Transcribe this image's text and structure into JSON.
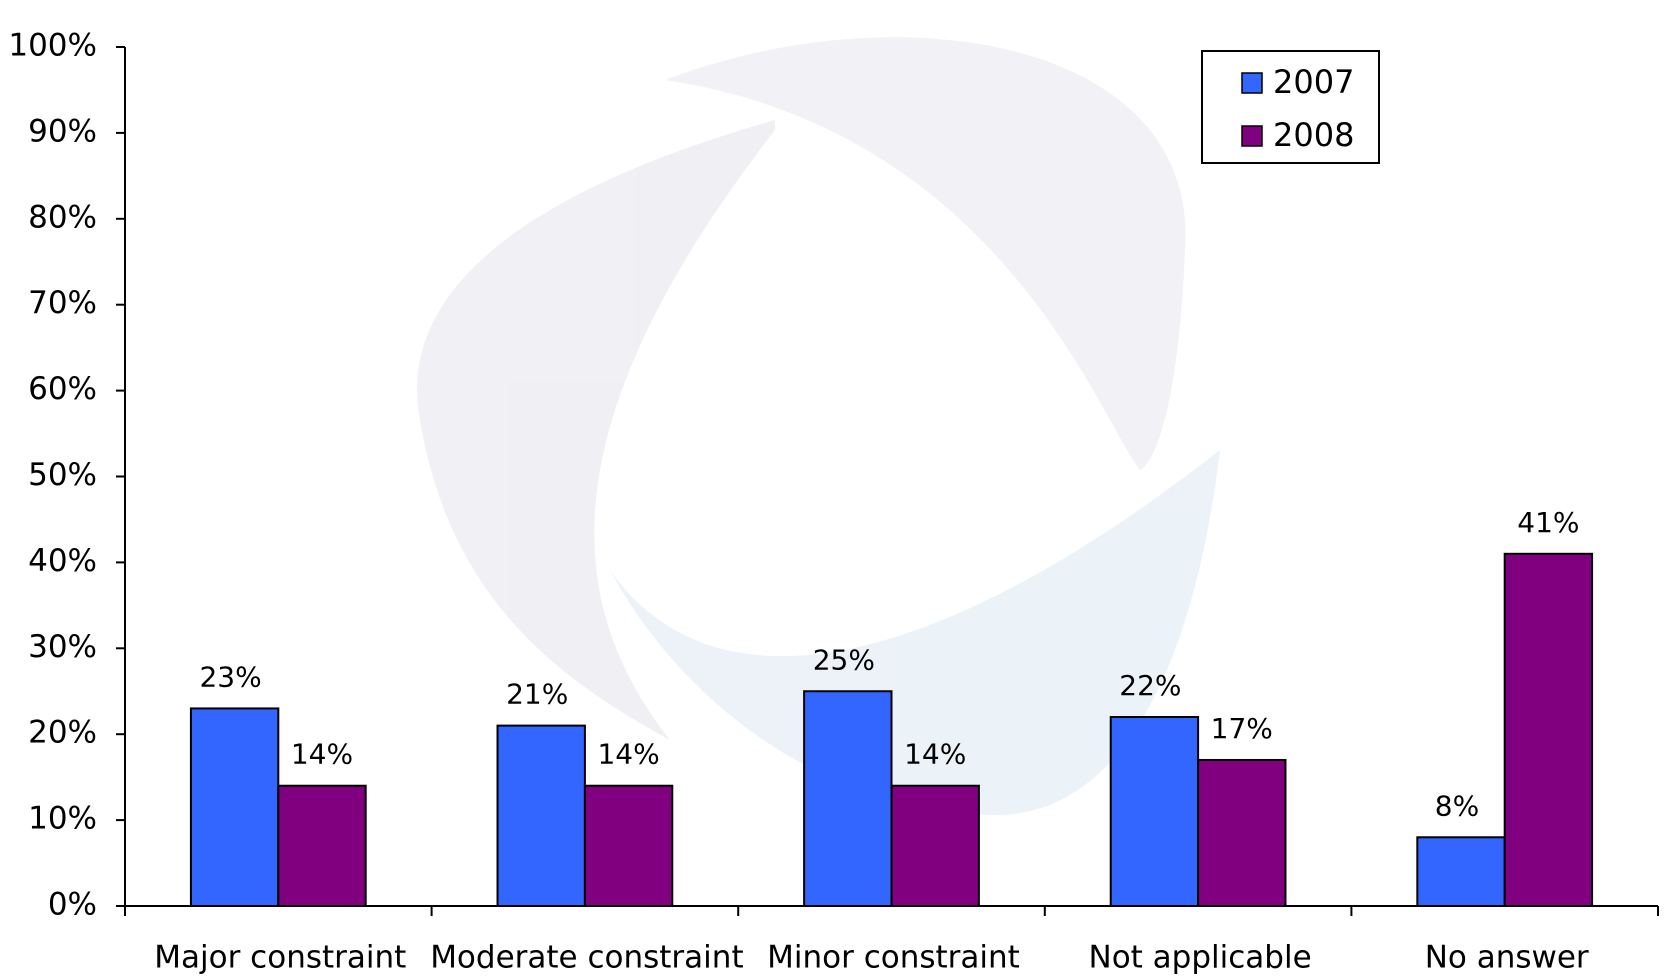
{
  "chart_data": {
    "type": "bar",
    "categories": [
      "Major constraint",
      "Moderate constraint",
      "Minor constraint",
      "Not applicable",
      "No answer"
    ],
    "series": [
      {
        "name": "2007",
        "color": "#3366ff",
        "values": [
          23,
          21,
          25,
          22,
          8
        ],
        "value_labels": [
          "23%",
          "21%",
          "25%",
          "22%",
          "8%"
        ]
      },
      {
        "name": "2008",
        "color": "#800080",
        "values": [
          14,
          14,
          14,
          17,
          41
        ],
        "value_labels": [
          "14%",
          "14%",
          "14%",
          "17%",
          "41%"
        ]
      }
    ],
    "ylim": [
      0,
      100
    ],
    "yticks": [
      {
        "value": 0,
        "label": "0%"
      },
      {
        "value": 10,
        "label": "10%"
      },
      {
        "value": 20,
        "label": "20%"
      },
      {
        "value": 30,
        "label": "30%"
      },
      {
        "value": 40,
        "label": "40%"
      },
      {
        "value": 50,
        "label": "50%"
      },
      {
        "value": 60,
        "label": "60%"
      },
      {
        "value": 70,
        "label": "70%"
      },
      {
        "value": 80,
        "label": "80%"
      },
      {
        "value": 90,
        "label": "90%"
      },
      {
        "value": 100,
        "label": "100%"
      }
    ],
    "grid": false,
    "legend_position": "upper-right"
  }
}
